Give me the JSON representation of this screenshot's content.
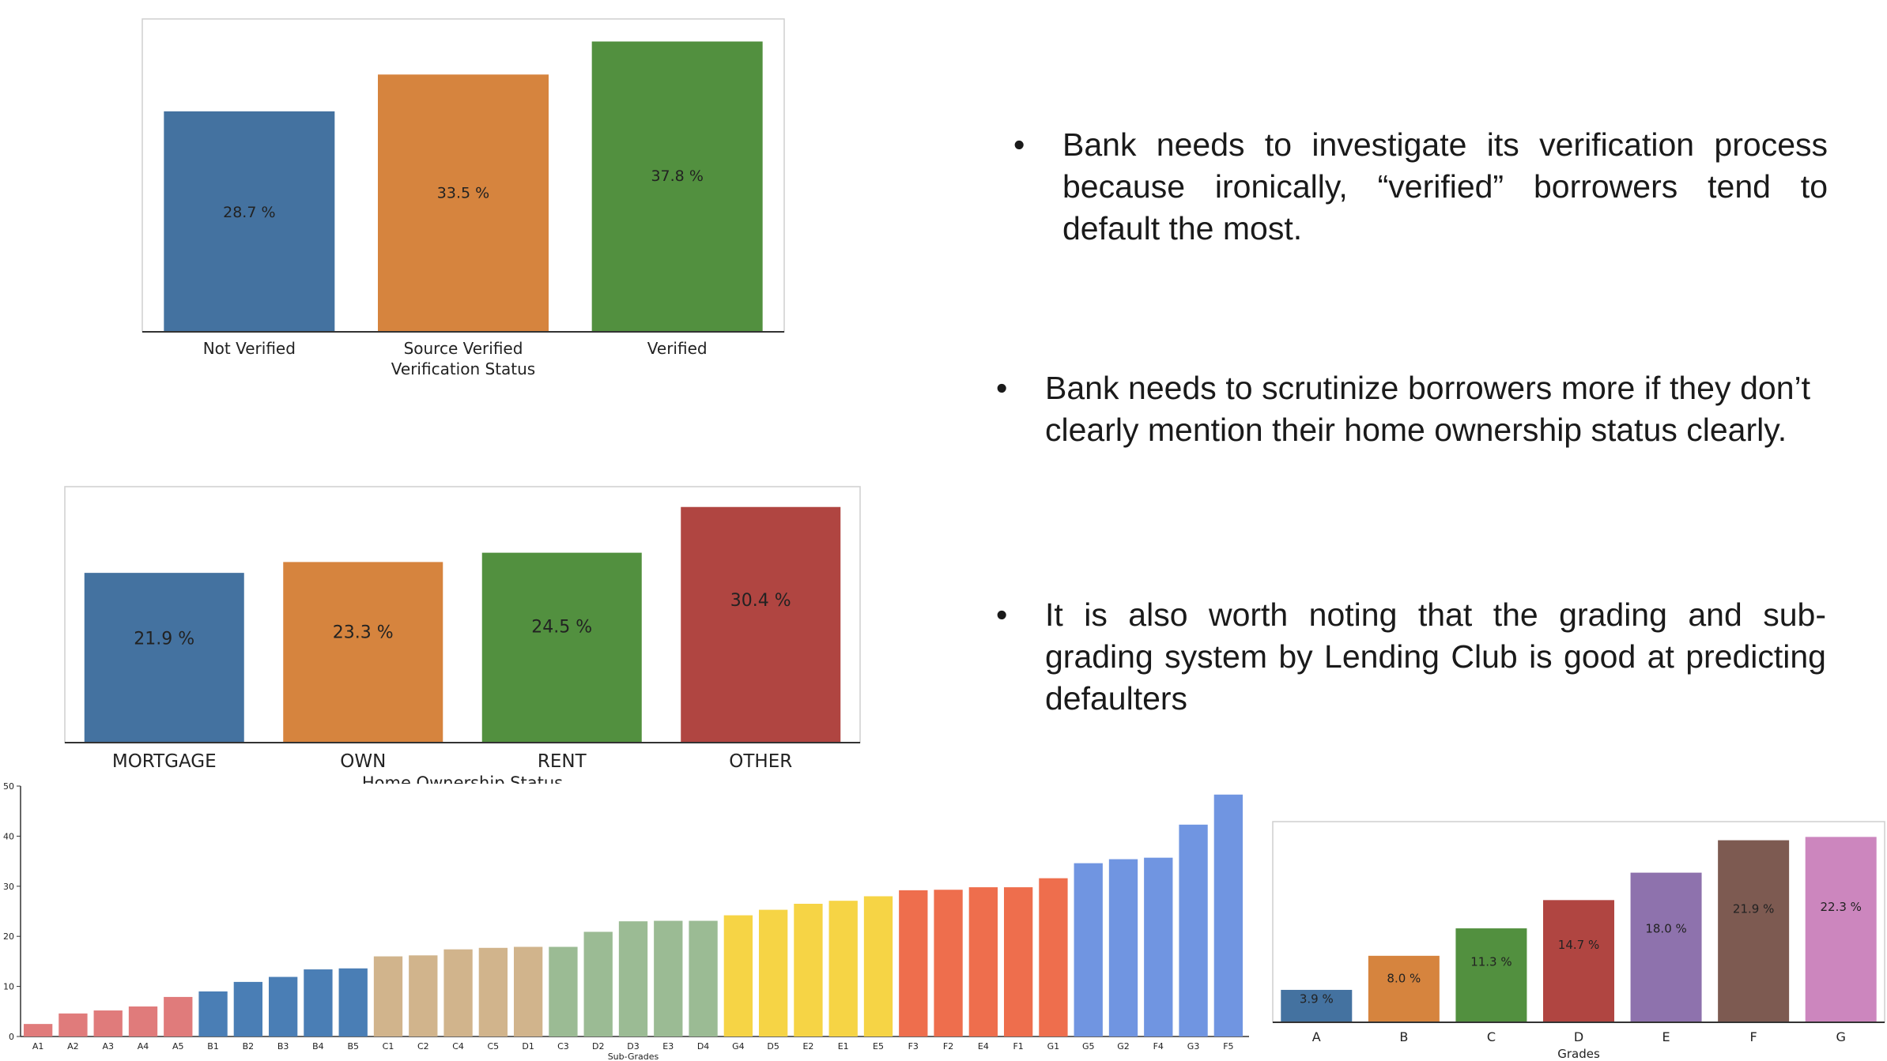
{
  "bullets": [
    "Bank needs to investigate its verification process because ironically, “verified” borrowers tend to default the most.",
    "Bank needs to scrutinize borrowers more if they don’t clearly mention their home ownership status clearly.",
    "It is also worth noting that the grading and sub-grading system by Lending Club is good at predicting defaulters"
  ],
  "chart_data": [
    {
      "id": "verification",
      "type": "bar",
      "categories": [
        "Not Verified",
        "Source Verified",
        "Verified"
      ],
      "values": [
        28.7,
        33.5,
        37.8
      ],
      "labels": [
        "28.7 %",
        "33.5 %",
        "37.8 %"
      ],
      "colors": [
        "#4472a0",
        "#d6843e",
        "#52903f"
      ],
      "xlabel": "Verification Status",
      "ylabel": "",
      "ylim": [
        0,
        39.5
      ],
      "grid": false
    },
    {
      "id": "home_ownership",
      "type": "bar",
      "categories": [
        "MORTGAGE",
        "OWN",
        "RENT",
        "OTHER"
      ],
      "values": [
        21.9,
        23.3,
        24.5,
        30.4
      ],
      "labels": [
        "21.9 %",
        "23.3 %",
        "24.5 %",
        "30.4 %"
      ],
      "colors": [
        "#4472a0",
        "#d6843e",
        "#52903f",
        "#b04541"
      ],
      "xlabel": "Home Ownership Status",
      "ylabel": "",
      "ylim": [
        0,
        31.8
      ],
      "grid": false
    },
    {
      "id": "sub_grades",
      "type": "bar",
      "categories": [
        "A1",
        "A2",
        "A3",
        "A4",
        "A5",
        "B1",
        "B2",
        "B3",
        "B4",
        "B5",
        "C1",
        "C2",
        "C4",
        "C5",
        "D1",
        "C3",
        "D2",
        "D3",
        "E3",
        "D4",
        "G4",
        "D5",
        "E2",
        "E1",
        "E5",
        "F3",
        "F2",
        "E4",
        "F1",
        "G1",
        "G5",
        "G2",
        "F4",
        "G3",
        "F5"
      ],
      "values": [
        2.5,
        4.6,
        5.2,
        6.0,
        7.9,
        9.0,
        10.9,
        11.9,
        13.4,
        13.6,
        16.0,
        16.2,
        17.4,
        17.7,
        17.9,
        17.9,
        20.9,
        23.0,
        23.1,
        23.1,
        24.2,
        25.3,
        26.5,
        27.1,
        28.0,
        29.2,
        29.3,
        29.8,
        29.8,
        31.6,
        34.6,
        35.4,
        35.7,
        42.3,
        48.3
      ],
      "colors": [
        "#e07b7b",
        "#e07b7b",
        "#e07b7b",
        "#e07b7b",
        "#e07b7b",
        "#4a7eb5",
        "#4a7eb5",
        "#4a7eb5",
        "#4a7eb5",
        "#4a7eb5",
        "#d1b48c",
        "#d1b48c",
        "#d1b48c",
        "#d1b48c",
        "#d1b48c",
        "#9bbb94",
        "#9bbb94",
        "#9bbb94",
        "#9bbb94",
        "#9bbb94",
        "#f6d445",
        "#f6d445",
        "#f6d445",
        "#f6d445",
        "#f6d445",
        "#ee6e4d",
        "#ee6e4d",
        "#ee6e4d",
        "#ee6e4d",
        "#ee6e4d",
        "#7095e1",
        "#7095e1",
        "#7095e1",
        "#7095e1",
        "#7095e1"
      ],
      "yticks": [
        0,
        10,
        20,
        30,
        40,
        50
      ],
      "ylim": [
        0,
        50
      ],
      "xlabel": "Sub-Grades",
      "ylabel": "",
      "grid": false
    },
    {
      "id": "grades",
      "type": "bar",
      "categories": [
        "A",
        "B",
        "C",
        "D",
        "E",
        "F",
        "G"
      ],
      "values": [
        3.9,
        8.0,
        11.3,
        14.7,
        18.0,
        21.9,
        22.3
      ],
      "labels": [
        "3.9 %",
        "8.0 %",
        "11.3 %",
        "14.7 %",
        "18.0 %",
        "21.9 %",
        "22.3 %"
      ],
      "colors": [
        "#4472a0",
        "#d6843e",
        "#52903f",
        "#b04541",
        "#8e72ad",
        "#7d5a51",
        "#cc86be"
      ],
      "xlabel": "Grades",
      "ylabel": "",
      "ylim": [
        0,
        23
      ],
      "grid": false
    }
  ]
}
